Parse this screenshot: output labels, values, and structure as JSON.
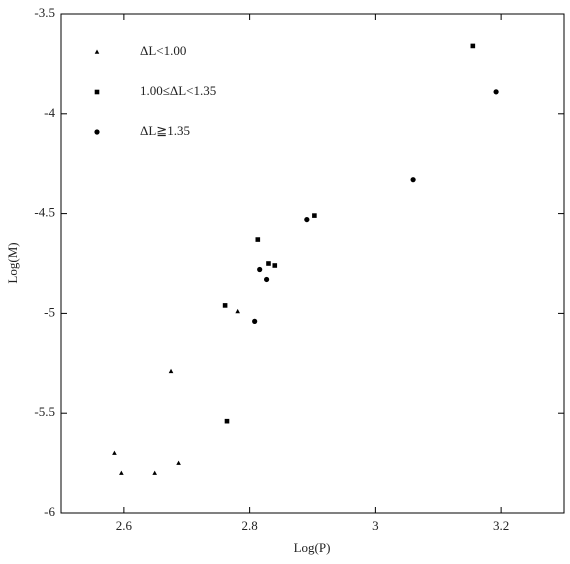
{
  "chart_data": {
    "type": "scatter",
    "x_label": "Log(P)",
    "y_label": "Log(M)",
    "xlim": [
      2.5,
      3.3
    ],
    "ylim": [
      -6,
      -3.5
    ],
    "xticks": [
      2.6,
      2.8,
      3,
      3.2
    ],
    "yticks": [
      -3.5,
      -4,
      -4.5,
      -5,
      -5.5,
      -6
    ],
    "legend": "upper left",
    "series": [
      {
        "name": "ΔL<1.00",
        "color": "#000000",
        "marker": "triangle",
        "x": [
          2.585,
          2.596,
          2.649,
          2.687,
          2.675,
          2.781
        ],
        "values": [
          -5.7,
          -5.8,
          -5.8,
          -5.75,
          -5.29,
          -4.99
        ]
      },
      {
        "name": "1.00≤ΔL<1.35",
        "color": "#000000",
        "marker": "square",
        "x": [
          3.155,
          2.761,
          2.764,
          2.813,
          2.83,
          2.84,
          2.903
        ],
        "values": [
          -3.66,
          -4.96,
          -5.54,
          -4.63,
          -4.75,
          -4.76,
          -4.51
        ]
      },
      {
        "name": "ΔL≧1.35",
        "color": "#000000",
        "marker": "circle",
        "x": [
          3.192,
          3.06,
          2.891,
          2.816,
          2.827,
          2.808
        ],
        "values": [
          -3.89,
          -4.33,
          -4.53,
          -4.78,
          -4.83,
          -5.04
        ]
      }
    ]
  }
}
